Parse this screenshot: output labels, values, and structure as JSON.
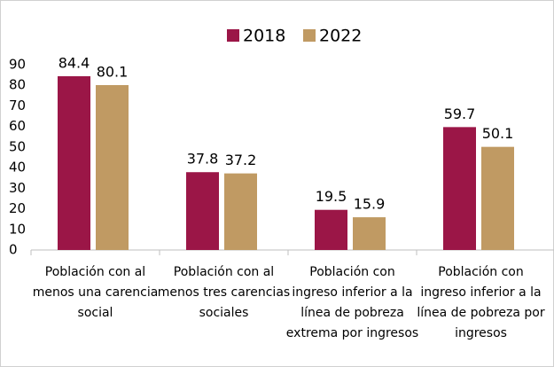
{
  "chart_data": {
    "type": "bar",
    "categories": [
      "Población con al menos una carencia social",
      "Población con al menos tres carencias sociales",
      "Población con ingreso inferior a la línea de pobreza extrema por ingresos",
      "Población con ingreso inferior a la línea de pobreza por ingresos"
    ],
    "series": [
      {
        "name": "2018",
        "color": "#9b1647",
        "values": [
          84.4,
          37.8,
          19.5,
          59.7
        ]
      },
      {
        "name": "2022",
        "color": "#c09a63",
        "values": [
          80.1,
          37.2,
          15.9,
          50.1
        ]
      }
    ],
    "ylim": [
      0,
      90
    ],
    "yticks": [
      0,
      10,
      20,
      30,
      40,
      50,
      60,
      70,
      80,
      90
    ],
    "grid": false,
    "legend": "top"
  }
}
